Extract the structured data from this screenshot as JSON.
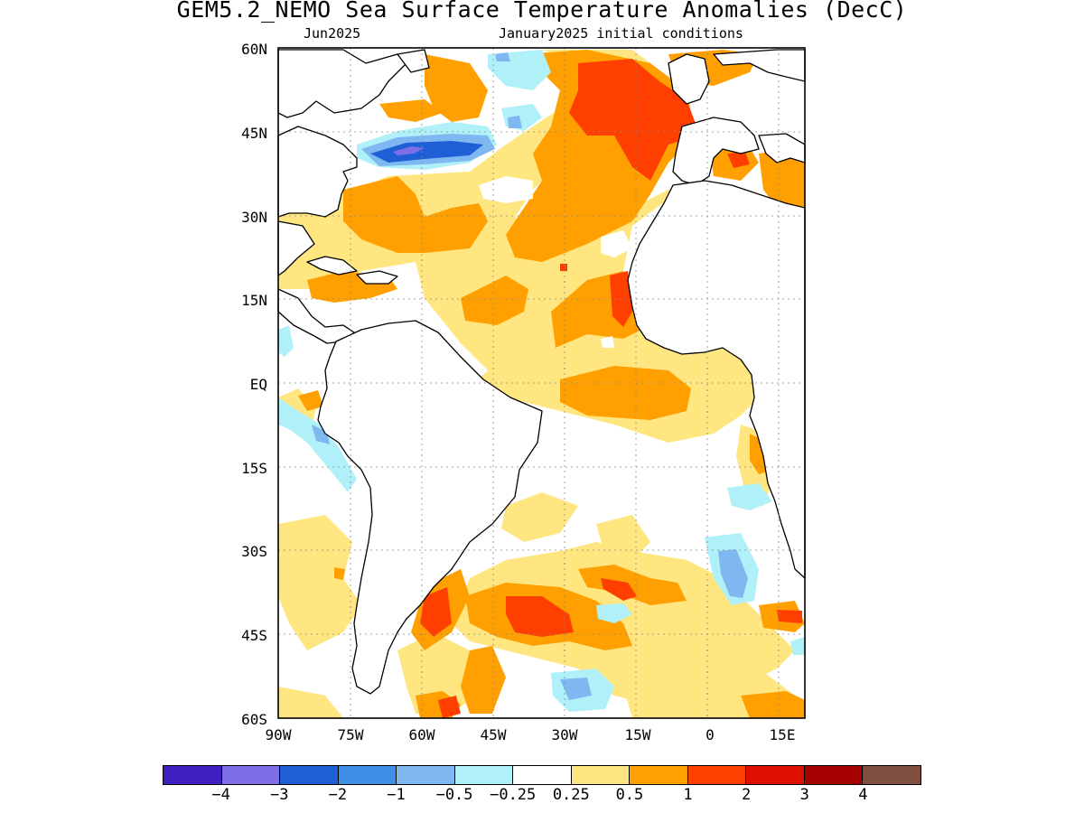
{
  "title": "GEM5.2_NEMO Sea Surface Temperature Anomalies (DecC)",
  "subtitle_left": "Jun2025",
  "subtitle_right": "January2025 initial conditions",
  "map": {
    "lat_labels": [
      "60N",
      "45N",
      "30N",
      "15N",
      "EQ",
      "15S",
      "30S",
      "45S",
      "60S"
    ],
    "lon_labels": [
      "90W",
      "75W",
      "60W",
      "45W",
      "30W",
      "15W",
      "0",
      "15E"
    ],
    "lat_range": [
      -60,
      60
    ],
    "lon_range": [
      -90,
      17
    ],
    "grid": "dotted"
  },
  "colorbar": {
    "colors": [
      "#3f1fbf",
      "#7f6fe6",
      "#1f5fd6",
      "#3f8fe6",
      "#7fb8f0",
      "#b0f0f8",
      "#ffffff",
      "#ffe680",
      "#ffa000",
      "#ff3f00",
      "#e01000",
      "#a50000",
      "#7f4f3f"
    ],
    "labels": [
      "−4",
      "−3",
      "−2",
      "−1",
      "−0.5",
      "−0.25",
      "0.25",
      "0.5",
      "1",
      "2",
      "3",
      "4"
    ]
  }
}
